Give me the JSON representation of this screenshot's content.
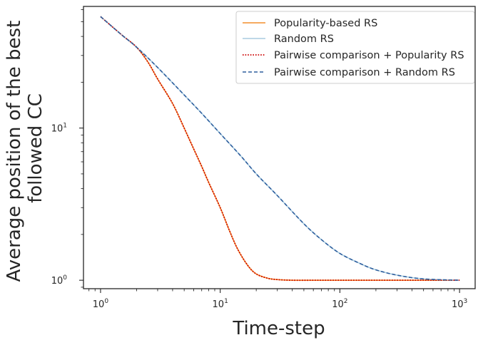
{
  "chart_data": {
    "type": "line",
    "xlabel": "Time-step",
    "ylabel_lines": [
      "Average position of the best",
      "followed CC"
    ],
    "xscale": "log",
    "yscale": "log",
    "xlim": [
      0.72,
      1350
    ],
    "ylim": [
      0.88,
      63
    ],
    "grid": false,
    "legend_position": "top-right",
    "x_ticks": [
      {
        "value": 1,
        "base": "10",
        "exp": "0"
      },
      {
        "value": 10,
        "base": "10",
        "exp": "1"
      },
      {
        "value": 100,
        "base": "10",
        "exp": "2"
      },
      {
        "value": 1000,
        "base": "10",
        "exp": "3"
      }
    ],
    "y_ticks": [
      {
        "value": 1,
        "base": "10",
        "exp": "0"
      },
      {
        "value": 10,
        "base": "10",
        "exp": "1"
      }
    ],
    "series": [
      {
        "name": "Popularity-based RS",
        "color": "#f28e2b",
        "style": "solid",
        "x": [
          1,
          1.5,
          2,
          2.5,
          3,
          4,
          5,
          6,
          7,
          8,
          10,
          12,
          14,
          17,
          20,
          25,
          30,
          40,
          60,
          100,
          200,
          500,
          1000
        ],
        "y": [
          54,
          41,
          34,
          27,
          21,
          14.5,
          10,
          7.3,
          5.6,
          4.4,
          3.0,
          2.1,
          1.6,
          1.25,
          1.1,
          1.03,
          1.01,
          1.0,
          1.0,
          1.0,
          1.0,
          1.0,
          1.0
        ]
      },
      {
        "name": "Random RS",
        "color": "#a8cce0",
        "style": "solid",
        "x": [
          1,
          1.5,
          2,
          3,
          5,
          7,
          10,
          15,
          20,
          30,
          50,
          70,
          100,
          150,
          200,
          300,
          500,
          1000
        ],
        "y": [
          54,
          41,
          34,
          25,
          16.5,
          12.5,
          9.2,
          6.5,
          5.0,
          3.6,
          2.35,
          1.85,
          1.5,
          1.28,
          1.17,
          1.08,
          1.02,
          1.0
        ]
      },
      {
        "name": "Pairwise comparison + Popularity RS",
        "color": "#cc0000",
        "style": "dotted",
        "x": [
          1,
          1.5,
          2,
          2.5,
          3,
          4,
          5,
          6,
          7,
          8,
          10,
          12,
          14,
          17,
          20,
          25,
          30,
          40,
          60,
          100,
          200,
          500,
          1000
        ],
        "y": [
          54,
          41,
          34,
          27,
          21,
          14.5,
          10,
          7.3,
          5.6,
          4.4,
          3.0,
          2.1,
          1.6,
          1.25,
          1.1,
          1.03,
          1.01,
          1.0,
          1.0,
          1.0,
          1.0,
          1.0,
          1.0
        ]
      },
      {
        "name": "Pairwise comparison + Random RS",
        "color": "#2f5f9e",
        "style": "dashed",
        "x": [
          1,
          1.5,
          2,
          3,
          5,
          7,
          10,
          15,
          20,
          30,
          50,
          70,
          100,
          150,
          200,
          300,
          500,
          1000
        ],
        "y": [
          54,
          41,
          34,
          25,
          16.5,
          12.5,
          9.2,
          6.5,
          5.0,
          3.6,
          2.35,
          1.85,
          1.5,
          1.28,
          1.17,
          1.08,
          1.02,
          1.0
        ]
      }
    ]
  }
}
